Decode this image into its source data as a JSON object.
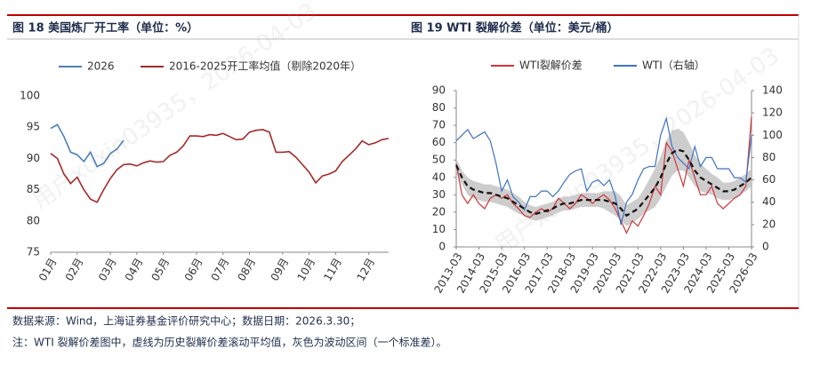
{
  "chart_data": [
    {
      "type": "line",
      "title": "图 18 美国炼厂开工率（单位：%）",
      "categories": [
        "01月",
        null,
        null,
        null,
        "02月",
        null,
        null,
        null,
        null,
        "03月",
        null,
        null,
        null,
        "04月",
        null,
        null,
        null,
        "05月",
        null,
        null,
        null,
        null,
        "06月",
        null,
        null,
        null,
        "07月",
        null,
        null,
        null,
        "08月",
        null,
        null,
        null,
        null,
        "09月",
        null,
        null,
        null,
        "10月",
        null,
        null,
        null,
        "11月",
        null,
        null,
        null,
        null,
        "12月",
        null,
        null,
        null
      ],
      "series": [
        {
          "name": "2026",
          "color": "#4a7ebb",
          "values": [
            94.8,
            95.4,
            93.5,
            91,
            90.6,
            89.5,
            91,
            88.7,
            89.2,
            90.8,
            91.5,
            92.9,
            null,
            null,
            null,
            null,
            null,
            null,
            null,
            null,
            null,
            null,
            null,
            null,
            null,
            null,
            null,
            null,
            null,
            null,
            null,
            null,
            null,
            null,
            null,
            null,
            null,
            null,
            null,
            null,
            null,
            null,
            null,
            null,
            null,
            null,
            null,
            null,
            null,
            null,
            null,
            null
          ]
        },
        {
          "name": "2016-2025开工率均值（剔除2020年）",
          "color": "#a52a2a",
          "values": [
            90.8,
            90,
            87.5,
            86,
            87,
            85,
            83.5,
            83,
            85,
            86.8,
            88.2,
            89,
            89.1,
            88.8,
            89.3,
            89.6,
            89.4,
            89.5,
            90.5,
            91,
            92,
            93.6,
            93.6,
            93.5,
            93.8,
            93.7,
            94,
            93.5,
            93,
            93.1,
            94.2,
            94.5,
            94.6,
            94.2,
            91,
            91,
            91.1,
            90.2,
            89,
            87.8,
            86.1,
            87.2,
            87.5,
            88,
            89.5,
            90.5,
            91.5,
            92.8,
            92.2,
            92.5,
            93,
            93.2
          ]
        }
      ],
      "ylim": [
        75,
        100
      ],
      "yticks": [
        75,
        80,
        85,
        90,
        95,
        100
      ],
      "grid": false
    },
    {
      "type": "line",
      "title": "图 19 WTI 裂解价差（单位：美元/桶）",
      "categories": [
        "2013-03",
        null,
        null,
        null,
        "2014-03",
        null,
        null,
        null,
        "2015-03",
        null,
        null,
        null,
        "2016-03",
        null,
        null,
        null,
        "2017-03",
        null,
        null,
        null,
        "2018-03",
        null,
        null,
        null,
        "2019-03",
        null,
        null,
        null,
        "2020-03",
        null,
        null,
        null,
        "2021-03",
        null,
        null,
        null,
        "2022-03",
        null,
        null,
        null,
        "2023-03",
        null,
        null,
        null,
        "2024-03",
        null,
        null,
        null,
        "2025-03",
        null,
        null,
        null,
        "2026-03"
      ],
      "series": [
        {
          "name": "WTI裂解价差",
          "color": "#d0353a",
          "values": [
            48,
            30,
            25,
            30,
            25,
            22,
            28,
            30,
            28,
            30,
            25,
            22,
            18,
            17,
            20,
            22,
            20,
            22,
            28,
            25,
            22,
            25,
            30,
            28,
            25,
            28,
            30,
            27,
            22,
            15,
            8,
            15,
            12,
            18,
            25,
            35,
            30,
            60,
            55,
            45,
            35,
            50,
            40,
            30,
            30,
            35,
            25,
            22,
            25,
            28,
            30,
            35,
            75
          ]
        },
        {
          "name": "WTI（右轴）",
          "color": "#3f72c2",
          "axis": "y2",
          "values": [
            95,
            100,
            105,
            97,
            100,
            103,
            95,
            75,
            50,
            60,
            45,
            40,
            33,
            45,
            45,
            50,
            50,
            45,
            50,
            58,
            65,
            68,
            70,
            50,
            58,
            60,
            55,
            60,
            45,
            20,
            40,
            47,
            60,
            70,
            72,
            72,
            100,
            115,
            90,
            80,
            75,
            70,
            90,
            72,
            80,
            80,
            70,
            70,
            70,
            62,
            62,
            58,
            100
          ]
        }
      ],
      "average": {
        "color": "#111111",
        "values": [
          47,
          40,
          35,
          33,
          32,
          31,
          31,
          30,
          29,
          28,
          26,
          24,
          22,
          20,
          19,
          20,
          21,
          22,
          24,
          25,
          25,
          26,
          27,
          27,
          27,
          27,
          27,
          26,
          25,
          22,
          18,
          20,
          22,
          26,
          30,
          34,
          40,
          48,
          54,
          56,
          55,
          50,
          44,
          40,
          38,
          36,
          34,
          32,
          32,
          33,
          35,
          37,
          40
        ]
      },
      "band": {
        "color": "#c4c4c4",
        "values": [
          4,
          4,
          5,
          5,
          5,
          5,
          5,
          5,
          5,
          5,
          5,
          5,
          4,
          4,
          4,
          4,
          4,
          4,
          4,
          4,
          4,
          4,
          4,
          4,
          4,
          4,
          5,
          6,
          7,
          7,
          6,
          6,
          6,
          7,
          9,
          11,
          12,
          13,
          13,
          12,
          11,
          10,
          9,
          8,
          7,
          6,
          6,
          5,
          5,
          5,
          5,
          5,
          5
        ]
      },
      "ylim": [
        0,
        90
      ],
      "yticks": [
        0,
        10,
        20,
        30,
        40,
        50,
        60,
        70,
        80,
        90
      ],
      "y2lim": [
        0,
        140
      ],
      "y2ticks": [
        0,
        20,
        40,
        60,
        80,
        100,
        120,
        140
      ],
      "grid": false
    }
  ],
  "source": "数据来源：Wind，上海证券基金评价研究中心；数据日期：2026.3.30；",
  "note": "注：WTI 裂解价差图中，虚线为历史裂解价差滚动平均值，灰色为波动区间（一个标准差）。",
  "watermark": "用户xuxin03935，2026-04-03"
}
